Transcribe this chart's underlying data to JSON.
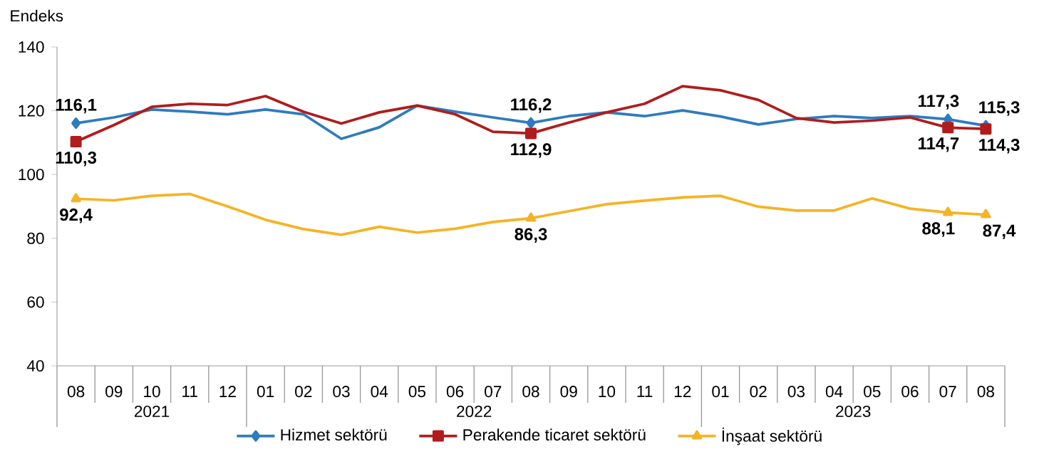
{
  "chart_data": {
    "type": "line",
    "ylabel": "Endeks",
    "categories": [
      "08",
      "09",
      "10",
      "11",
      "12",
      "01",
      "02",
      "03",
      "04",
      "05",
      "06",
      "07",
      "08",
      "09",
      "10",
      "11",
      "12",
      "01",
      "02",
      "03",
      "04",
      "05",
      "06",
      "07",
      "08"
    ],
    "annotations": [
      "2021",
      "2022",
      "2023"
    ],
    "ylim": [
      40,
      140
    ],
    "yticks": [
      40,
      60,
      80,
      100,
      120,
      140
    ],
    "legend": "bottom",
    "series": [
      {
        "name": "Hizmet sektörü",
        "color": "#2e7bbf",
        "values": [
          116.1,
          117.9,
          120.4,
          119.7,
          118.9,
          120.4,
          118.9,
          111.2,
          114.8,
          121.6,
          119.7,
          117.9,
          116.2,
          118.3,
          119.5,
          118.3,
          120.1,
          118.2,
          115.7,
          117.4,
          118.3,
          117.7,
          118.3,
          117.3,
          115.3
        ],
        "value_labels": [
          "116,1",
          null,
          null,
          null,
          null,
          null,
          null,
          null,
          null,
          null,
          null,
          null,
          "116,2",
          null,
          null,
          null,
          null,
          null,
          null,
          null,
          null,
          null,
          null,
          "117,3",
          "115,3"
        ]
      },
      {
        "name": "Perakende ticaret sektörü",
        "color": "#b01c1c",
        "values": [
          110.3,
          115.5,
          121.2,
          122.2,
          121.8,
          124.6,
          119.7,
          116.0,
          119.5,
          121.6,
          118.9,
          113.4,
          112.9,
          116.3,
          119.5,
          122.2,
          127.7,
          126.4,
          123.4,
          117.7,
          116.3,
          116.9,
          117.9,
          114.7,
          114.3
        ],
        "value_labels": [
          "110,3",
          null,
          null,
          null,
          null,
          null,
          null,
          null,
          null,
          null,
          null,
          null,
          "112,9",
          null,
          null,
          null,
          null,
          null,
          null,
          null,
          null,
          null,
          null,
          "114,7",
          "114,3"
        ]
      },
      {
        "name": "İnşaat sektörü",
        "color": "#f5b325",
        "values": [
          92.4,
          91.9,
          93.3,
          93.9,
          90.0,
          85.8,
          82.9,
          81.1,
          83.6,
          81.8,
          83.0,
          85.1,
          86.3,
          88.5,
          90.7,
          91.8,
          92.8,
          93.3,
          89.9,
          88.7,
          88.7,
          92.5,
          89.3,
          88.1,
          87.4
        ],
        "value_labels": [
          "92,4",
          null,
          null,
          null,
          null,
          null,
          null,
          null,
          null,
          null,
          null,
          null,
          "86,3",
          null,
          null,
          null,
          null,
          null,
          null,
          null,
          null,
          null,
          null,
          "88,1",
          "87,4"
        ]
      }
    ]
  }
}
